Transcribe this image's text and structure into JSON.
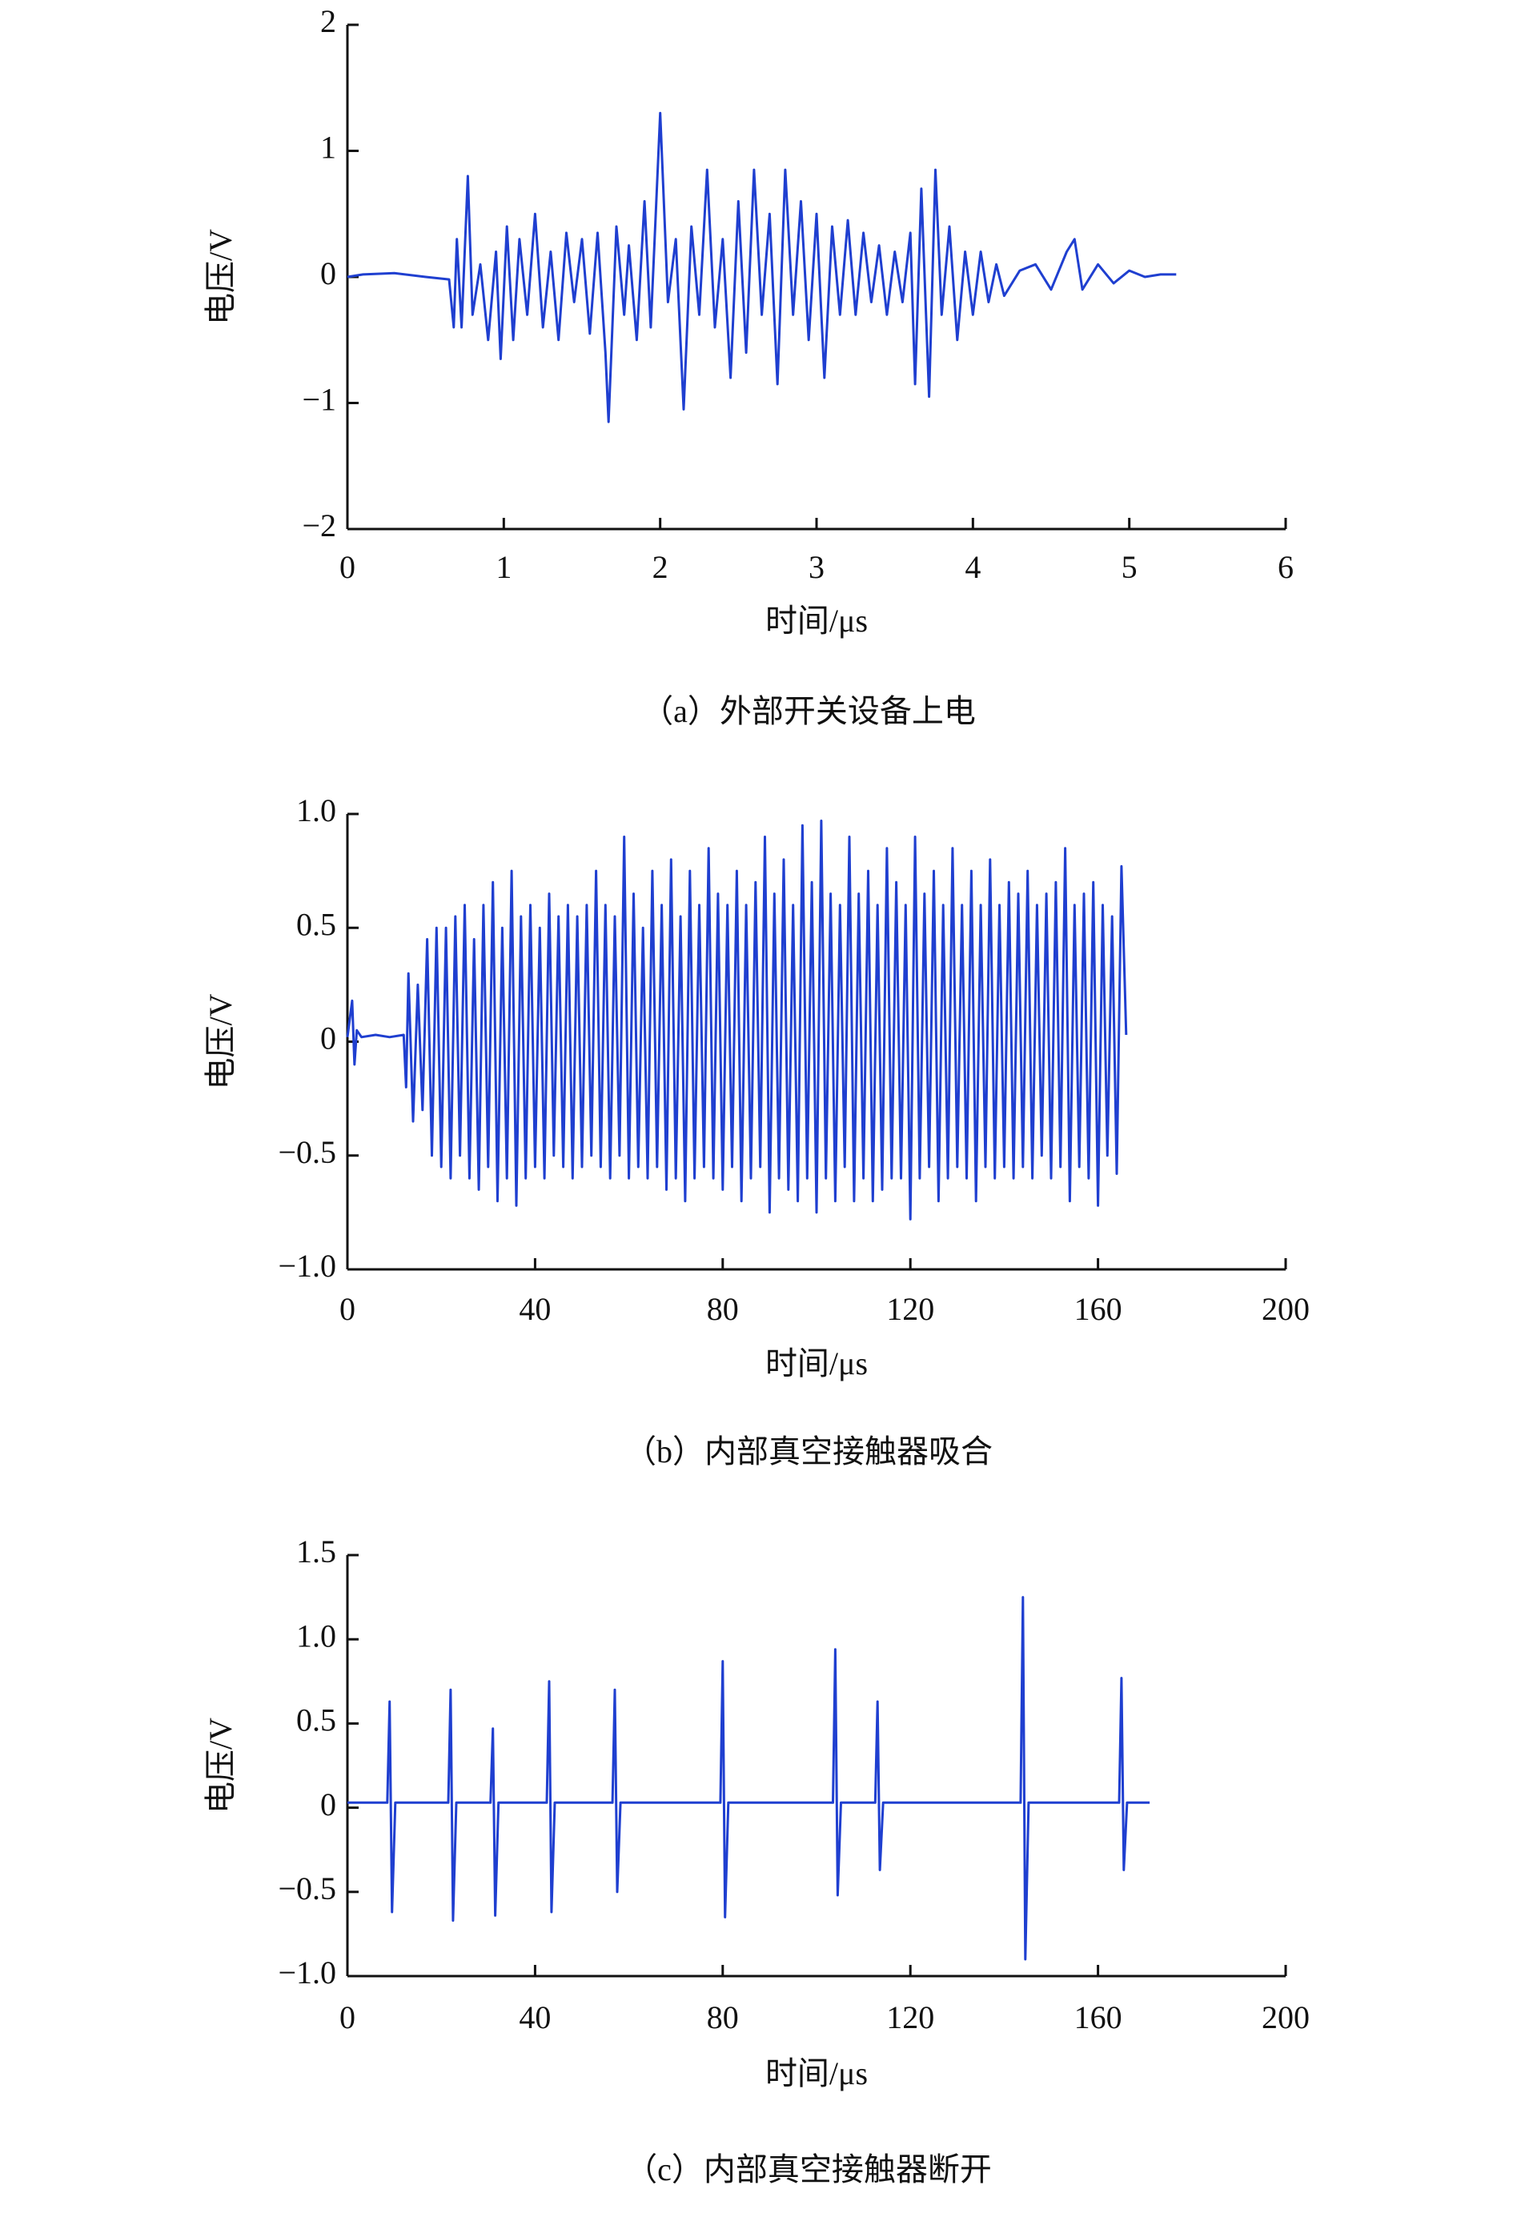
{
  "chart_data": [
    {
      "type": "line",
      "x_label": "时间/μs",
      "y_label": "电压/V",
      "caption": "（a）外部开关设备上电",
      "color": "#1f3fd0",
      "xlim": [
        0,
        6
      ],
      "ylim": [
        -2,
        2
      ],
      "xticks": [
        0,
        1,
        2,
        3,
        4,
        5,
        6
      ],
      "yticks": [
        {
          "value": -2,
          "label": "−2"
        },
        {
          "value": -1,
          "label": "−1"
        },
        0,
        1,
        2
      ],
      "x": [
        0,
        0.1,
        0.3,
        0.5,
        0.65,
        0.68,
        0.7,
        0.73,
        0.77,
        0.8,
        0.85,
        0.9,
        0.95,
        0.98,
        1.02,
        1.06,
        1.1,
        1.15,
        1.2,
        1.25,
        1.3,
        1.35,
        1.4,
        1.45,
        1.5,
        1.55,
        1.6,
        1.65,
        1.67,
        1.72,
        1.77,
        1.8,
        1.85,
        1.9,
        1.94,
        2.0,
        2.05,
        2.1,
        2.15,
        2.2,
        2.25,
        2.3,
        2.35,
        2.4,
        2.45,
        2.5,
        2.55,
        2.6,
        2.65,
        2.7,
        2.75,
        2.8,
        2.85,
        2.9,
        2.95,
        3.0,
        3.05,
        3.1,
        3.15,
        3.2,
        3.25,
        3.3,
        3.35,
        3.4,
        3.45,
        3.5,
        3.55,
        3.6,
        3.63,
        3.67,
        3.72,
        3.76,
        3.8,
        3.85,
        3.9,
        3.95,
        4.0,
        4.05,
        4.1,
        4.15,
        4.2,
        4.3,
        4.4,
        4.5,
        4.6,
        4.65,
        4.7,
        4.8,
        4.9,
        5.0,
        5.1,
        5.2,
        5.3
      ],
      "values": [
        0,
        0.02,
        0.03,
        0,
        -0.02,
        -0.4,
        0.3,
        -0.4,
        0.8,
        -0.3,
        0.1,
        -0.5,
        0.2,
        -0.65,
        0.4,
        -0.5,
        0.3,
        -0.3,
        0.5,
        -0.4,
        0.2,
        -0.5,
        0.35,
        -0.2,
        0.3,
        -0.45,
        0.35,
        -0.6,
        -1.15,
        0.4,
        -0.3,
        0.25,
        -0.5,
        0.6,
        -0.4,
        1.3,
        -0.2,
        0.3,
        -1.05,
        0.4,
        -0.3,
        0.85,
        -0.4,
        0.3,
        -0.8,
        0.6,
        -0.6,
        0.85,
        -0.3,
        0.5,
        -0.85,
        0.85,
        -0.3,
        0.6,
        -0.5,
        0.5,
        -0.8,
        0.4,
        -0.3,
        0.45,
        -0.3,
        0.35,
        -0.2,
        0.25,
        -0.3,
        0.2,
        -0.2,
        0.35,
        -0.85,
        0.7,
        -0.95,
        0.85,
        -0.3,
        0.4,
        -0.5,
        0.2,
        -0.3,
        0.2,
        -0.2,
        0.1,
        -0.15,
        0.05,
        0.1,
        -0.1,
        0.2,
        0.3,
        -0.1,
        0.1,
        -0.05,
        0.05,
        0,
        0.02,
        0.02
      ]
    },
    {
      "type": "line",
      "x_label": "时间/μs",
      "y_label": "电压/V",
      "caption": "（b）内部真空接触器吸合",
      "color": "#1f3fd0",
      "xlim": [
        0,
        200
      ],
      "ylim": [
        -1,
        1
      ],
      "xticks": [
        0,
        40,
        80,
        120,
        160,
        200
      ],
      "yticks": [
        {
          "value": -1,
          "label": "−1.0"
        },
        {
          "value": -0.5,
          "label": "−0.5"
        },
        0,
        0.5,
        {
          "value": 1,
          "label": "1.0"
        }
      ],
      "x": [
        0,
        1,
        1.5,
        2,
        3,
        6,
        9,
        12,
        12.5,
        13,
        14,
        15,
        16,
        17,
        18,
        19,
        20,
        21,
        22,
        23,
        24,
        25,
        26,
        27,
        28,
        29,
        30,
        31,
        32,
        33,
        34,
        35,
        36,
        37,
        38,
        39,
        40,
        41,
        42,
        43,
        44,
        45,
        46,
        47,
        48,
        49,
        50,
        51,
        52,
        53,
        54,
        55,
        56,
        57,
        58,
        59,
        60,
        61,
        62,
        63,
        64,
        65,
        66,
        67,
        68,
        69,
        70,
        71,
        72,
        73,
        74,
        75,
        76,
        77,
        78,
        79,
        80,
        81,
        82,
        83,
        84,
        85,
        86,
        87,
        88,
        89,
        90,
        91,
        92,
        93,
        94,
        95,
        96,
        97,
        98,
        99,
        100,
        101,
        102,
        103,
        104,
        105,
        106,
        107,
        108,
        109,
        110,
        111,
        112,
        113,
        114,
        115,
        116,
        117,
        118,
        119,
        120,
        121,
        122,
        123,
        124,
        125,
        126,
        127,
        128,
        129,
        130,
        131,
        132,
        133,
        134,
        135,
        136,
        137,
        138,
        139,
        140,
        141,
        142,
        143,
        144,
        145,
        146,
        147,
        148,
        149,
        150,
        151,
        152,
        153,
        154,
        155,
        156,
        157,
        158,
        159,
        160,
        161,
        162,
        163,
        164,
        165,
        166
      ],
      "values": [
        0.02,
        0.18,
        -0.1,
        0.05,
        0.02,
        0.03,
        0.02,
        0.03,
        -0.2,
        0.3,
        -0.35,
        0.25,
        -0.3,
        0.45,
        -0.5,
        0.5,
        -0.55,
        0.5,
        -0.6,
        0.55,
        -0.5,
        0.6,
        -0.6,
        0.45,
        -0.65,
        0.6,
        -0.55,
        0.7,
        -0.7,
        0.5,
        -0.6,
        0.75,
        -0.72,
        0.55,
        -0.6,
        0.6,
        -0.55,
        0.5,
        -0.6,
        0.65,
        -0.5,
        0.55,
        -0.55,
        0.6,
        -0.6,
        0.55,
        -0.55,
        0.6,
        -0.5,
        0.75,
        -0.55,
        0.6,
        -0.6,
        0.55,
        -0.5,
        0.9,
        -0.6,
        0.65,
        -0.55,
        0.5,
        -0.6,
        0.75,
        -0.55,
        0.6,
        -0.65,
        0.8,
        -0.6,
        0.55,
        -0.7,
        0.75,
        -0.6,
        0.6,
        -0.55,
        0.85,
        -0.6,
        0.65,
        -0.65,
        0.6,
        -0.55,
        0.75,
        -0.7,
        0.6,
        -0.6,
        0.7,
        -0.55,
        0.9,
        -0.75,
        0.65,
        -0.6,
        0.8,
        -0.65,
        0.6,
        -0.7,
        0.95,
        -0.6,
        0.7,
        -0.75,
        0.97,
        -0.6,
        0.65,
        -0.7,
        0.6,
        -0.55,
        0.9,
        -0.7,
        0.65,
        -0.6,
        0.75,
        -0.7,
        0.6,
        -0.65,
        0.85,
        -0.6,
        0.7,
        -0.6,
        0.6,
        -0.78,
        0.9,
        -0.6,
        0.65,
        -0.55,
        0.75,
        -0.7,
        0.6,
        -0.6,
        0.85,
        -0.55,
        0.6,
        -0.6,
        0.75,
        -0.7,
        0.6,
        -0.55,
        0.8,
        -0.6,
        0.6,
        -0.55,
        0.7,
        -0.6,
        0.65,
        -0.55,
        0.75,
        -0.6,
        0.6,
        -0.5,
        0.65,
        -0.6,
        0.7,
        -0.55,
        0.85,
        -0.7,
        0.6,
        -0.55,
        0.65,
        -0.6,
        0.7,
        -0.72,
        0.6,
        -0.5,
        0.55,
        -0.58,
        0.77,
        0.03
      ]
    },
    {
      "type": "line",
      "x_label": "时间/μs",
      "y_label": "电压/V",
      "caption": "（c）内部真空接触器断开",
      "color": "#1f3fd0",
      "xlim": [
        0,
        200
      ],
      "ylim": [
        -1,
        1.5
      ],
      "xticks": [
        0,
        40,
        80,
        120,
        160,
        200
      ],
      "yticks": [
        {
          "value": -1,
          "label": "−1.0"
        },
        {
          "value": -0.5,
          "label": "−0.5"
        },
        0,
        0.5,
        {
          "value": 1,
          "label": "1.0"
        },
        1.5
      ],
      "x": [
        0,
        8.5,
        9,
        9.5,
        10.2,
        21.5,
        22,
        22.5,
        23.2,
        30.5,
        31,
        31.5,
        32.2,
        42.5,
        43,
        43.5,
        44.2,
        56.5,
        57,
        57.5,
        58.2,
        79.5,
        80,
        80.5,
        81.2,
        103.5,
        104,
        104.5,
        105.2,
        112.5,
        113,
        113.5,
        114.2,
        143.5,
        144,
        144.5,
        145.2,
        164.5,
        165,
        165.5,
        166.2,
        171
      ],
      "values": [
        0.03,
        0.03,
        0.63,
        -0.62,
        0.03,
        0.03,
        0.7,
        -0.67,
        0.03,
        0.03,
        0.47,
        -0.64,
        0.03,
        0.03,
        0.75,
        -0.62,
        0.03,
        0.03,
        0.7,
        -0.5,
        0.03,
        0.03,
        0.87,
        -0.65,
        0.03,
        0.03,
        0.94,
        -0.52,
        0.03,
        0.03,
        0.63,
        -0.37,
        0.03,
        0.03,
        1.25,
        -0.9,
        0.03,
        0.03,
        0.77,
        -0.37,
        0.03,
        0.03
      ]
    }
  ]
}
